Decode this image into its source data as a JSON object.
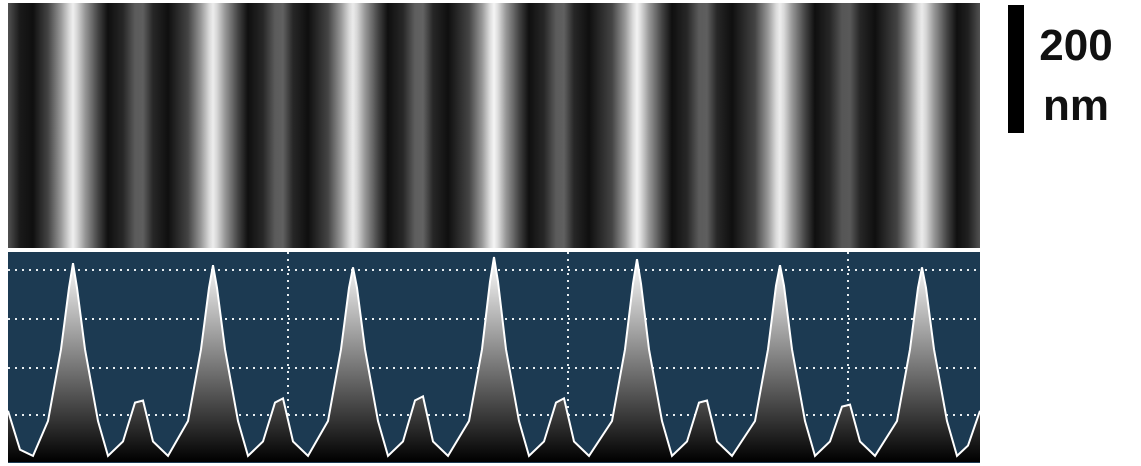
{
  "scale_bar": {
    "value": "200",
    "unit": "nm"
  },
  "profile": {
    "x": [
      8,
      20,
      33,
      48,
      61,
      69,
      73,
      77,
      85,
      98,
      108,
      123,
      135,
      143,
      153,
      168,
      188,
      201,
      209,
      213,
      217,
      225,
      238,
      248,
      263,
      275,
      283,
      293,
      308,
      328,
      341,
      349,
      353,
      357,
      365,
      378,
      388,
      403,
      415,
      423,
      433,
      448,
      469,
      482,
      490,
      494,
      498,
      506,
      519,
      529,
      544,
      556,
      564,
      574,
      589,
      612,
      625,
      633,
      637,
      641,
      649,
      662,
      672,
      687,
      699,
      707,
      717,
      732,
      755,
      768,
      776,
      780,
      784,
      792,
      805,
      815,
      830,
      842,
      850,
      860,
      875,
      897,
      910,
      918,
      922,
      926,
      934,
      947,
      957,
      968,
      980
    ],
    "values": [
      25,
      6,
      3,
      20,
      55,
      85,
      97,
      85,
      55,
      20,
      3,
      10,
      29,
      30,
      10,
      3,
      20,
      55,
      85,
      96,
      85,
      55,
      20,
      3,
      10,
      29,
      31,
      10,
      3,
      20,
      55,
      85,
      95,
      85,
      55,
      20,
      3,
      10,
      30,
      32,
      10,
      3,
      20,
      55,
      88,
      100,
      88,
      55,
      20,
      3,
      10,
      29,
      31,
      10,
      3,
      20,
      55,
      87,
      99,
      87,
      55,
      20,
      3,
      10,
      29,
      30,
      10,
      3,
      20,
      55,
      86,
      96,
      86,
      55,
      20,
      3,
      10,
      27,
      28,
      10,
      3,
      20,
      55,
      85,
      95,
      85,
      55,
      20,
      3,
      8,
      25
    ]
  }
}
